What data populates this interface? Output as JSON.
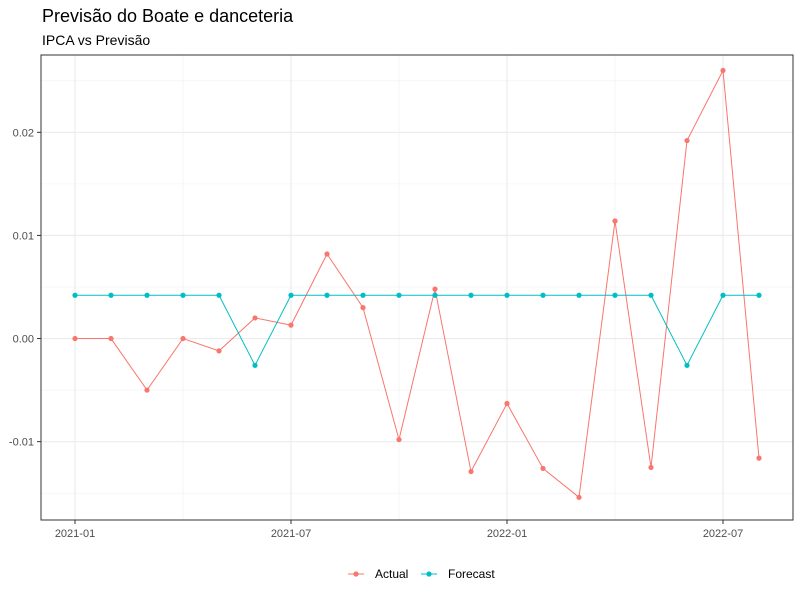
{
  "chart_data": {
    "type": "line",
    "title": "Previsão do Boate e danceteria",
    "subtitle": "IPCA vs Previsão",
    "xlabel": "",
    "ylabel": "",
    "x": [
      "2021-01",
      "2021-02",
      "2021-03",
      "2021-04",
      "2021-05",
      "2021-06",
      "2021-07",
      "2021-08",
      "2021-09",
      "2021-10",
      "2021-11",
      "2021-12",
      "2022-01",
      "2022-02",
      "2022-03",
      "2022-04",
      "2022-05",
      "2022-06",
      "2022-07",
      "2022-08"
    ],
    "x_ticks": [
      "2021-01",
      "2021-07",
      "2022-01",
      "2022-07"
    ],
    "y_ticks": [
      -0.01,
      0.0,
      0.01,
      0.02
    ],
    "y_tick_labels": [
      "-0.01",
      "0.00",
      "0.01",
      "0.02"
    ],
    "ylim": [
      -0.0176,
      0.0275
    ],
    "grid": true,
    "legend_position": "bottom",
    "series": [
      {
        "name": "Actual",
        "color": "#F8766D",
        "values": [
          0.0,
          0.0,
          -0.005,
          0.0,
          -0.0012,
          0.002,
          0.0013,
          0.0082,
          0.003,
          -0.0098,
          0.0048,
          -0.0129,
          -0.0063,
          -0.0126,
          -0.0154,
          0.0114,
          -0.0125,
          0.0192,
          0.026,
          -0.0116
        ]
      },
      {
        "name": "Forecast",
        "color": "#00BFC4",
        "values": [
          0.0042,
          0.0042,
          0.0042,
          0.0042,
          0.0042,
          -0.0026,
          0.0042,
          0.0042,
          0.0042,
          0.0042,
          0.0042,
          0.0042,
          0.0042,
          0.0042,
          0.0042,
          0.0042,
          0.0042,
          -0.0026,
          0.0042,
          0.0042
        ]
      }
    ]
  }
}
